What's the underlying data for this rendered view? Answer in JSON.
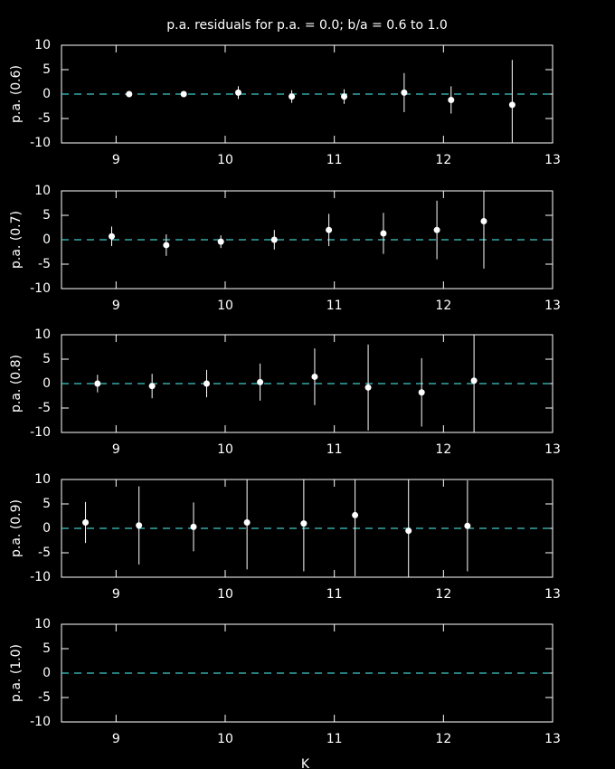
{
  "chart_data": [
    {
      "type": "scatter",
      "title": "p.a. residuals for p.a. = 0.0; b/a = 0.6 to 1.0",
      "ylabel": "p.a. (0.6)",
      "x": [
        9.12,
        9.62,
        10.12,
        10.61,
        11.09,
        11.64,
        12.07,
        12.63
      ],
      "values": [
        0,
        0,
        0.3,
        -0.5,
        -0.5,
        0.3,
        -1.2,
        -2.2
      ],
      "errors": [
        0.5,
        0.5,
        1.3,
        1.3,
        1.5,
        4,
        2.8,
        9.2
      ],
      "color": "#ffffff",
      "hline": 0,
      "hline_color": "#40c8c8",
      "xlim": [
        8.5,
        13
      ],
      "ylim": [
        -10,
        10
      ],
      "xticks": [
        9,
        10,
        11,
        12,
        13
      ],
      "yticks": [
        -10,
        -5,
        0,
        5,
        10
      ]
    },
    {
      "type": "scatter",
      "ylabel": "p.a. (0.7)",
      "x": [
        8.96,
        9.46,
        9.96,
        10.45,
        10.95,
        11.45,
        11.94,
        12.37
      ],
      "values": [
        0.7,
        -1.1,
        -0.4,
        0,
        2,
        1.3,
        2,
        3.8
      ],
      "errors": [
        2,
        2.2,
        1.3,
        2,
        3.3,
        4.2,
        6,
        9.7
      ],
      "color": "#ffffff",
      "hline": 0,
      "hline_color": "#40c8c8",
      "xlim": [
        8.5,
        13
      ],
      "ylim": [
        -10,
        10
      ],
      "xticks": [
        9,
        10,
        11,
        12,
        13
      ],
      "yticks": [
        -10,
        -5,
        0,
        5,
        10
      ]
    },
    {
      "type": "scatter",
      "ylabel": "p.a. (0.8)",
      "x": [
        8.83,
        9.33,
        9.83,
        10.32,
        10.82,
        11.31,
        11.8,
        12.28
      ],
      "values": [
        0,
        -0.5,
        0,
        0.3,
        1.4,
        -0.8,
        -1.8,
        0.6
      ],
      "errors": [
        1.8,
        2.5,
        2.8,
        3.8,
        5.8,
        8.8,
        7,
        11
      ],
      "color": "#ffffff",
      "hline": 0,
      "hline_color": "#40c8c8",
      "xlim": [
        8.5,
        13
      ],
      "ylim": [
        -10,
        10
      ],
      "xticks": [
        9,
        10,
        11,
        12,
        13
      ],
      "yticks": [
        -10,
        -5,
        0,
        5,
        10
      ]
    },
    {
      "type": "scatter",
      "ylabel": "p.a. (0.9)",
      "x": [
        8.72,
        9.21,
        9.71,
        10.2,
        10.72,
        11.19,
        11.68,
        12.22
      ],
      "values": [
        1.2,
        0.6,
        0.3,
        1.2,
        1,
        2.7,
        -0.5,
        0.5
      ],
      "errors": [
        4.2,
        8,
        5,
        9.6,
        9.8,
        12.5,
        12,
        9.3
      ],
      "color": "#ffffff",
      "hline": 0,
      "hline_color": "#40c8c8",
      "xlim": [
        8.5,
        13
      ],
      "ylim": [
        -10,
        10
      ],
      "xticks": [
        9,
        10,
        11,
        12,
        13
      ],
      "yticks": [
        -10,
        -5,
        0,
        5,
        10
      ]
    },
    {
      "type": "scatter",
      "ylabel": "p.a. (1.0)",
      "xlabel": "K",
      "x": [],
      "values": [],
      "errors": [],
      "color": "#ffffff",
      "hline": 0,
      "hline_color": "#40c8c8",
      "xlim": [
        8.5,
        13
      ],
      "ylim": [
        -10,
        10
      ],
      "xticks": [
        9,
        10,
        11,
        12,
        13
      ],
      "yticks": [
        -10,
        -5,
        0,
        5,
        10
      ]
    }
  ]
}
